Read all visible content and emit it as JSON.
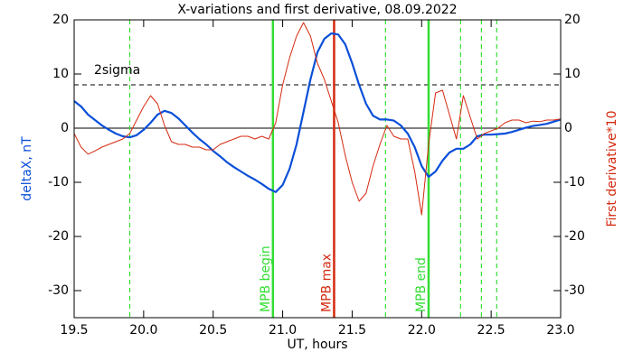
{
  "chart_data": {
    "type": "line",
    "title": "X-variations and first derivative, 08.09.2022",
    "xlabel": "UT, hours",
    "ylabel": "deltaX, nT",
    "y2label": "First derivative*10",
    "xlim": [
      19.5,
      23.0
    ],
    "xticks": [
      19.5,
      {
        "value": 20.0,
        "label": "20.0"
      },
      20.5,
      {
        "value": 21.0,
        "label": "21.0"
      },
      21.5,
      {
        "value": 22.0,
        "label": "22.0"
      },
      22.5,
      {
        "value": 23.0,
        "label": "23.0"
      }
    ],
    "ylim": [
      -35,
      20
    ],
    "yticks": [
      -30,
      -20,
      -10,
      0,
      10,
      20
    ],
    "y2lim": [
      -35,
      20
    ],
    "y2ticks": [
      -30,
      -20,
      -10,
      0,
      10,
      20
    ],
    "x": [
      19.5,
      19.55,
      19.6,
      19.65,
      19.7,
      19.75,
      19.8,
      19.85,
      19.9,
      19.95,
      20.0,
      20.05,
      20.1,
      20.15,
      20.2,
      20.25,
      20.3,
      20.35,
      20.4,
      20.45,
      20.5,
      20.55,
      20.6,
      20.65,
      20.7,
      20.75,
      20.8,
      20.85,
      20.9,
      20.95,
      21.0,
      21.05,
      21.1,
      21.15,
      21.2,
      21.25,
      21.3,
      21.35,
      21.4,
      21.45,
      21.5,
      21.55,
      21.6,
      21.65,
      21.7,
      21.75,
      21.8,
      21.85,
      21.9,
      21.95,
      22.0,
      22.05,
      22.1,
      22.15,
      22.2,
      22.25,
      22.3,
      22.35,
      22.4,
      22.45,
      22.5,
      22.55,
      22.6,
      22.65,
      22.7,
      22.75,
      22.8,
      22.85,
      22.9,
      22.95,
      23.0
    ],
    "series": [
      {
        "name": "deltaX, nT",
        "color": "#0a4fd8",
        "width": 2.2,
        "axis": "y",
        "values": [
          5,
          4,
          2.5,
          1.5,
          0.5,
          -0.3,
          -1,
          -1.5,
          -1.7,
          -1.3,
          -0.3,
          1,
          2.5,
          3.2,
          2.8,
          1.8,
          0.5,
          -0.8,
          -2,
          -3,
          -4.2,
          -5.2,
          -6.3,
          -7.2,
          -8,
          -8.8,
          -9.5,
          -10.3,
          -11.2,
          -11.8,
          -10.5,
          -7.5,
          -3,
          3,
          9,
          14,
          16.5,
          17.5,
          17.3,
          15.5,
          12,
          8,
          4.5,
          2.3,
          1.6,
          1.6,
          1.4,
          0.5,
          -1,
          -3.5,
          -7,
          -9,
          -8,
          -6,
          -4.5,
          -3.8,
          -3.8,
          -3,
          -1.5,
          -1.2,
          -1.2,
          -1.1,
          -1,
          -0.7,
          -0.3,
          0.1,
          0.4,
          0.6,
          0.8,
          1.2,
          1.6
        ]
      },
      {
        "name": "First derivative*10",
        "color": "#d42a10",
        "width": 1,
        "axis": "y2",
        "values": [
          -1,
          -3.5,
          -4.8,
          -4.2,
          -3.5,
          -3,
          -2.5,
          -2,
          -1,
          1.5,
          4,
          6,
          4.5,
          0.5,
          -2.5,
          -3,
          -3,
          -3.5,
          -3.5,
          -4,
          -4,
          -3,
          -2.5,
          -2,
          -1.5,
          -1.5,
          -2,
          -1.5,
          -2,
          1,
          8,
          13,
          17,
          19.5,
          17,
          12,
          9,
          5,
          1,
          -5,
          -10,
          -13.5,
          -12,
          -7,
          -3,
          0.5,
          -1.5,
          -2,
          -2,
          -8,
          -16,
          -3,
          6.5,
          7,
          2.5,
          -2,
          6,
          2,
          -2,
          -1,
          -0.5,
          0,
          1,
          1.5,
          1.5,
          1,
          1.3,
          1.2,
          1.5,
          1.5,
          1.7
        ]
      }
    ],
    "hlines": [
      {
        "y": 0,
        "color": "#000000",
        "style": "solid"
      },
      {
        "y": 8,
        "color": "#000000",
        "style": "dashed",
        "label": "2sigma"
      }
    ],
    "vlines": [
      {
        "x": 19.9,
        "color": "#33dd33",
        "style": "dashed"
      },
      {
        "x": 20.93,
        "color": "#33dd33",
        "style": "solid",
        "label": "MPB begin"
      },
      {
        "x": 21.37,
        "color": "#d42a10",
        "style": "solid",
        "label": "MPB max"
      },
      {
        "x": 21.74,
        "color": "#33dd33",
        "style": "dashed"
      },
      {
        "x": 22.05,
        "color": "#33dd33",
        "style": "solid",
        "label": "MPB end"
      },
      {
        "x": 22.28,
        "color": "#33dd33",
        "style": "dashed"
      },
      {
        "x": 22.43,
        "color": "#33dd33",
        "style": "dashed"
      },
      {
        "x": 22.54,
        "color": "#33dd33",
        "style": "dashed"
      }
    ]
  }
}
